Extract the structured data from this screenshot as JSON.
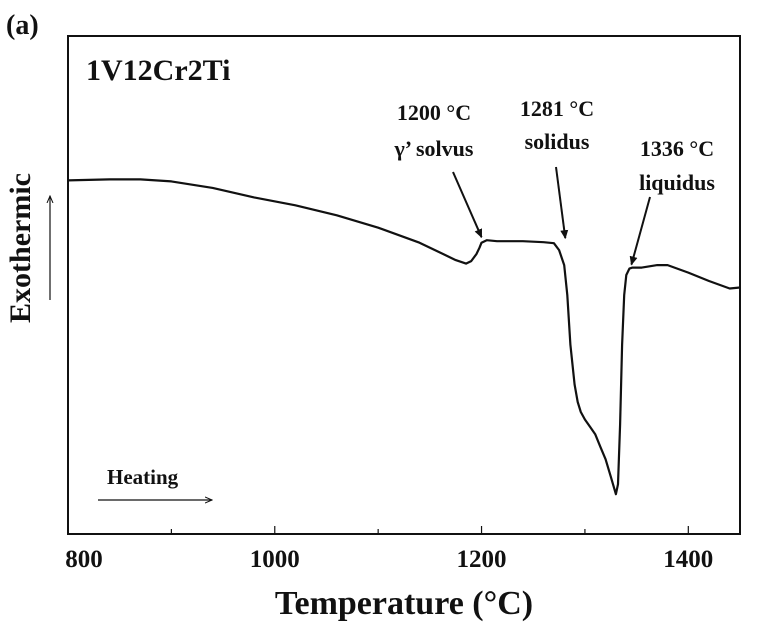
{
  "chart_data": {
    "type": "line",
    "panel_label": "(a)",
    "title": "1V12Cr2Ti",
    "xlabel": "Temperature (°C)",
    "ylabel": "Exothermic",
    "xlim": [
      800,
      1450
    ],
    "x_ticks": [
      800,
      1000,
      1200,
      1400
    ],
    "x_tick_labels": [
      "800",
      "1000",
      "1200",
      "1400"
    ],
    "y_ticks_shown": false,
    "grid": false,
    "legend": "none",
    "line_color": "#111111",
    "series": [
      {
        "x": [
          800,
          840,
          870,
          900,
          940,
          980,
          1020,
          1060,
          1100,
          1140,
          1160,
          1175,
          1185,
          1190,
          1195,
          1198,
          1200,
          1205,
          1215,
          1240,
          1260,
          1270,
          1275,
          1280,
          1283,
          1286,
          1290,
          1293,
          1296,
          1300,
          1305,
          1310,
          1315,
          1320,
          1325,
          1330,
          1332,
          1334,
          1336,
          1338,
          1340,
          1343,
          1346,
          1355,
          1370,
          1380,
          1400,
          1420,
          1440,
          1450
        ],
        "y": [
          0.71,
          0.712,
          0.712,
          0.708,
          0.695,
          0.676,
          0.66,
          0.64,
          0.615,
          0.585,
          0.565,
          0.55,
          0.543,
          0.548,
          0.562,
          0.575,
          0.585,
          0.59,
          0.588,
          0.588,
          0.586,
          0.584,
          0.57,
          0.54,
          0.48,
          0.38,
          0.3,
          0.265,
          0.245,
          0.23,
          0.215,
          0.2,
          0.175,
          0.15,
          0.115,
          0.08,
          0.1,
          0.22,
          0.38,
          0.48,
          0.52,
          0.533,
          0.535,
          0.535,
          0.54,
          0.54,
          0.525,
          0.508,
          0.493,
          0.495
        ]
      }
    ],
    "annotations": [
      {
        "label_line1": "1200 °C",
        "label_line2": "γ’ solvus",
        "x": 1200,
        "y": 0.588
      },
      {
        "label_line1": "1281 °C",
        "label_line2": "solidus",
        "x": 1281,
        "y": 0.586
      },
      {
        "label_line1": "1336 °C",
        "label_line2": "liquidus",
        "x": 1345,
        "y": 0.533
      }
    ],
    "direction_label": "Heating"
  }
}
